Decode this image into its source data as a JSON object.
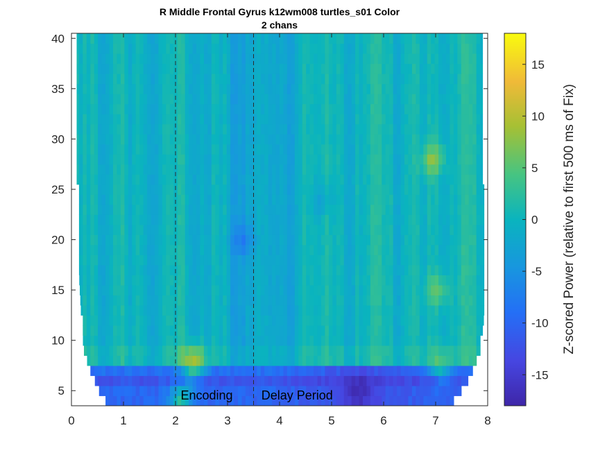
{
  "chart_data": {
    "type": "heatmap",
    "title": "R Middle Frontal Gyrus k12wm008 turtles_s01 Color",
    "subtitle": "2 chans",
    "xlabel": "",
    "ylabel": "",
    "xlim": [
      0,
      8
    ],
    "ylim": [
      3.5,
      40.5
    ],
    "x_ticks": [
      "0",
      "1",
      "2",
      "3",
      "4",
      "5",
      "6",
      "7",
      "8"
    ],
    "y_ticks": [
      "5",
      "10",
      "15",
      "20",
      "25",
      "30",
      "35",
      "40"
    ],
    "colorbar": {
      "label": "Z-scored Power (relative to first 500 ms of Fix)",
      "range": [
        -18,
        18
      ],
      "ticks": [
        "-15",
        "-10",
        "-5",
        "0",
        "5",
        "10",
        "15"
      ],
      "colormap": "parula"
    },
    "frequencies_hz": [
      4,
      5,
      6,
      7,
      8,
      9,
      10,
      11,
      12,
      13,
      14,
      15,
      16,
      17,
      18,
      19,
      20,
      21,
      22,
      23,
      24,
      25,
      26,
      27,
      28,
      29,
      30,
      31,
      32,
      33,
      34,
      35,
      36,
      37,
      38,
      39,
      40
    ],
    "valid_time_start_s": [
      0.65,
      0.53,
      0.45,
      0.35,
      0.3,
      0.24,
      0.22,
      0.2,
      0.19,
      0.18,
      0.17,
      0.16,
      0.15,
      0.14,
      0.13,
      0.13,
      0.13,
      0.13,
      0.12,
      0.12,
      0.12,
      0.11,
      0.1,
      0.1,
      0.1,
      0.1,
      0.1,
      0.1,
      0.1,
      0.1,
      0.1,
      0.1,
      0.1,
      0.1,
      0.1,
      0.1,
      0.1
    ],
    "valid_time_end_s": [
      7.35,
      7.52,
      7.62,
      7.72,
      7.8,
      7.86,
      7.88,
      7.9,
      7.92,
      7.93,
      7.94,
      7.95,
      7.96,
      7.96,
      7.96,
      7.96,
      7.96,
      7.96,
      7.96,
      7.96,
      7.96,
      7.96,
      7.9,
      7.9,
      7.9,
      7.9,
      7.9,
      7.9,
      7.9,
      7.9,
      7.9,
      7.9,
      7.9,
      7.9,
      7.9,
      7.9,
      7.9
    ],
    "band_baseline_z": [
      -10,
      -10,
      -12,
      -9,
      1,
      1,
      0,
      0,
      0,
      0,
      0,
      0,
      0,
      0,
      0,
      0,
      0,
      0,
      0,
      0,
      0,
      0,
      0,
      0,
      0,
      0,
      0,
      0,
      0,
      0,
      0,
      0,
      0,
      0,
      0,
      0,
      0
    ],
    "hotspots": [
      {
        "time_s": 2.35,
        "freq_hz": 8,
        "z": 12
      },
      {
        "time_s": 2.1,
        "freq_hz": 4,
        "z": 4
      },
      {
        "time_s": 6.95,
        "freq_hz": 28,
        "z": 8
      },
      {
        "time_s": 7.05,
        "freq_hz": 15,
        "z": 6
      },
      {
        "time_s": 7.1,
        "freq_hz": 8,
        "z": 5
      },
      {
        "time_s": 5.5,
        "freq_hz": 5,
        "z": -15
      },
      {
        "time_s": 3.3,
        "freq_hz": 20,
        "z": -5
      },
      {
        "time_s": 4.8,
        "freq_hz": 24,
        "z": -3
      }
    ],
    "event_lines_s": [
      2,
      3.5
    ],
    "annotations": [
      {
        "text": "Encoding",
        "time_s": 2.1
      },
      {
        "text": "Delay Period",
        "time_s": 3.65
      }
    ]
  }
}
